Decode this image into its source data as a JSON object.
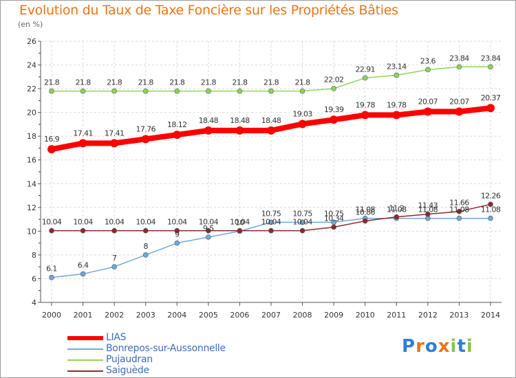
{
  "title": "Evolution du Taux de Taxe Foncière sur les Propriétés Bâties",
  "subtitle": "(en %)",
  "logo": {
    "letters": [
      "P",
      "r",
      "o",
      "x",
      "i",
      "t",
      "i"
    ],
    "colors": [
      "#2f7fd6",
      "#e8741a",
      "#2f7fd6",
      "#e8741a",
      "#8bc34a",
      "#2f7fd6",
      "#8bc34a"
    ]
  },
  "chart_data": {
    "type": "line",
    "x": [
      "2000",
      "2001",
      "2002",
      "2003",
      "2004",
      "2005",
      "2006",
      "2007",
      "2008",
      "2009",
      "2010",
      "2011",
      "2012",
      "2013",
      "2014"
    ],
    "ylim": [
      4,
      26
    ],
    "yticks": [
      4,
      6,
      8,
      10,
      12,
      14,
      16,
      18,
      20,
      22,
      24,
      26
    ],
    "grid": true,
    "legend_position": "bottom-left",
    "series": [
      {
        "name": "LIAS",
        "color": "#ff0000",
        "values": [
          16.9,
          17.41,
          17.41,
          17.76,
          18.12,
          18.48,
          18.48,
          18.48,
          19.03,
          19.39,
          19.78,
          19.78,
          20.07,
          20.07,
          20.37
        ],
        "labels": [
          "16.9",
          "17.41",
          "17.41",
          "17.76",
          "18.12",
          "18.48",
          "18.48",
          "18.48",
          "19.03",
          "19.39",
          "19.78",
          "19.78",
          "20.07",
          "20.07",
          "20.37"
        ]
      },
      {
        "name": "Bonrepos-sur-Aussonnelle",
        "color": "#6fa8dc",
        "values": [
          6.1,
          6.4,
          7,
          8,
          9,
          9.5,
          10,
          10.75,
          10.75,
          10.75,
          11.08,
          11.08,
          11.08,
          11.08,
          11.08
        ],
        "labels": [
          "6.1",
          "6.4",
          "7",
          "8",
          "9",
          "9.5",
          "10",
          "10.75",
          "10.75",
          "10.75",
          "11.08",
          "11.08",
          "11.08",
          "11.08",
          "11.08"
        ]
      },
      {
        "name": "Pujaudran",
        "color": "#8fd45a",
        "values": [
          21.8,
          21.8,
          21.8,
          21.8,
          21.8,
          21.8,
          21.8,
          21.8,
          21.8,
          22.02,
          22.91,
          23.14,
          23.6,
          23.84,
          23.84
        ],
        "labels": [
          "21.8",
          "21.8",
          "21.8",
          "21.8",
          "21.8",
          "21.8",
          "21.8",
          "21.8",
          "21.8",
          "22.02",
          "22.91",
          "23.14",
          "23.6",
          "23.84",
          "23.84"
        ]
      },
      {
        "name": "Saiguède",
        "color": "#8b2a2a",
        "values": [
          10.04,
          10.04,
          10.04,
          10.04,
          10.04,
          10.04,
          10.04,
          10.04,
          10.04,
          10.34,
          10.86,
          11.2,
          11.43,
          11.66,
          12.26
        ],
        "labels": [
          "10.04",
          "10.04",
          "10.04",
          "10.04",
          "10.04",
          "10.04",
          "10.04",
          "10.04",
          "10.04",
          "10.34",
          "10.86",
          "11.2",
          "11.43",
          "11.66",
          "12.26"
        ]
      }
    ]
  }
}
